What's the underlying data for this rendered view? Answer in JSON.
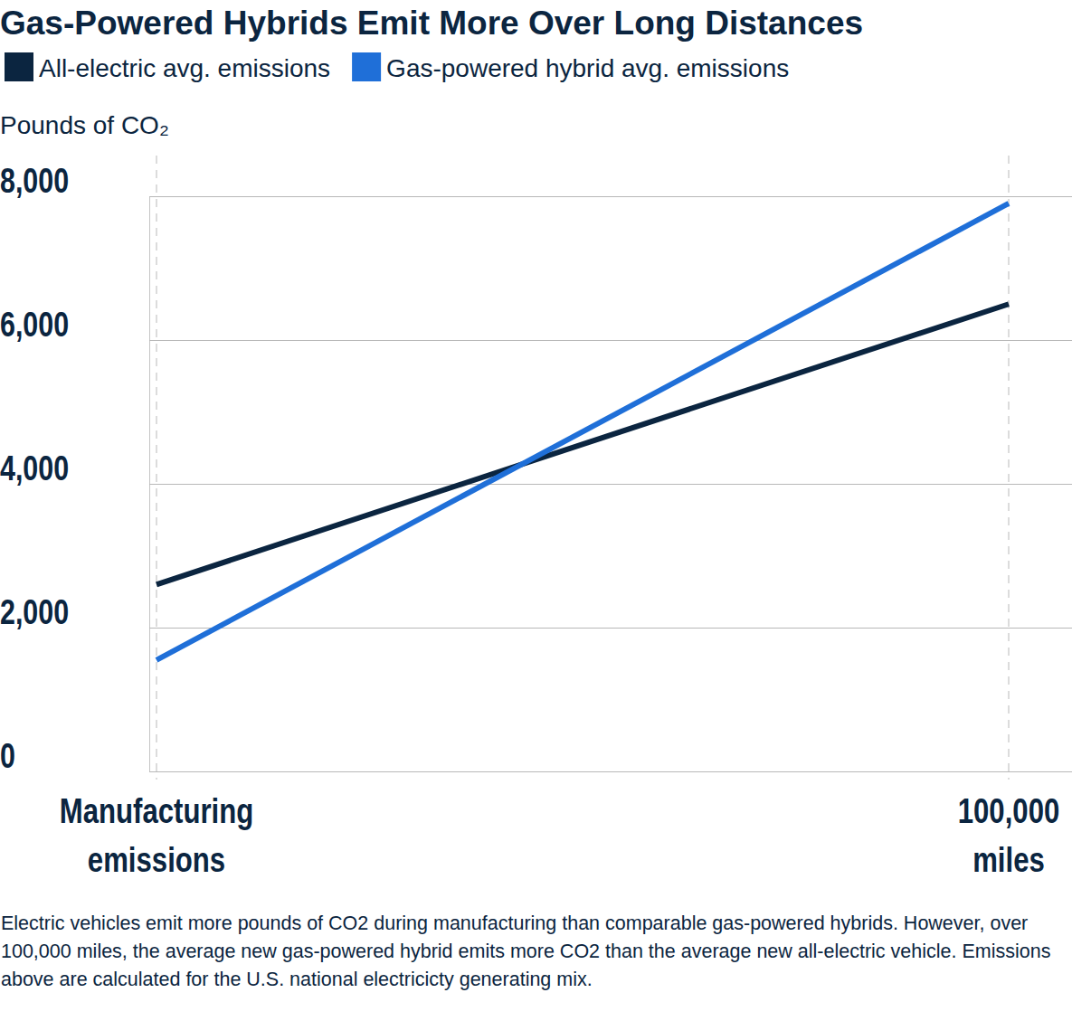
{
  "chart_data": {
    "type": "line",
    "title": "Gas-Powered Hybrids Emit More Over Long Distances",
    "ylabel": "Pounds of CO₂",
    "note": "Electric vehicles emit more pounds of CO2 during manufacturing than comparable gas-powered hybrids. However, over 100,000 miles, the average new gas-powered hybrid emits more CO2 than the average new all-electric vehicle. Emissions above are calculated for the U.S. national electricicty generating mix.",
    "categories": [
      "Manufacturing emissions",
      "100,000 miles"
    ],
    "series": [
      {
        "name": "All-electric avg. emissions",
        "color": "#0b2540",
        "values": [
          2600,
          6500
        ]
      },
      {
        "name": "Gas-powered hybrid avg. emissions",
        "color": "#1f6fd8",
        "values": [
          1550,
          7900
        ]
      }
    ],
    "ylim": [
      0,
      8000
    ],
    "yticks": [
      0,
      {
        "value": 2000,
        "label": "2,000"
      },
      {
        "value": 4000,
        "label": "4,000"
      },
      {
        "value": 6000,
        "label": "6,000"
      },
      {
        "value": 8000,
        "label": "8,000"
      }
    ],
    "grid": true,
    "legend": "top"
  }
}
